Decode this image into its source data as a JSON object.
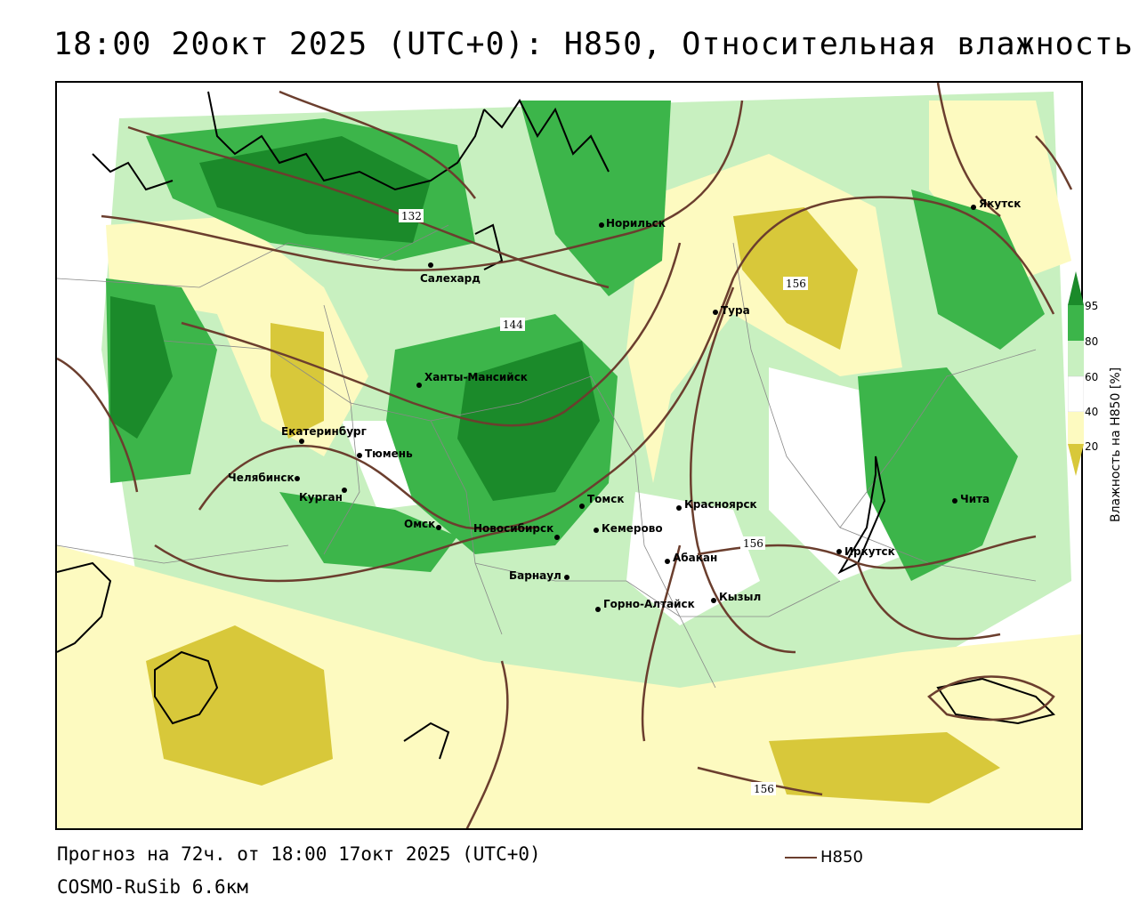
{
  "header": {
    "title": "18:00 20окт 2025 (UTC+0): H850, Относительная влажность"
  },
  "footer": {
    "forecast": "Прогноз на 72ч. от 18:00 17окт 2025 (UTC+0)",
    "model": "COSMO-RuSib 6.6км"
  },
  "legend": {
    "line_label": "H850",
    "line_color": "#6b3e2e"
  },
  "colorbar": {
    "title": "Влажность на H850 [%]",
    "ticks": [
      "95",
      "80",
      "60",
      "40",
      "20"
    ],
    "colors": {
      "c95": "#1b8a2a",
      "c80": "#3cb54a",
      "c60": "#c8f0c0",
      "c40": "#fdfac0",
      "c20": "#d8c83a"
    }
  },
  "contours": {
    "labels": [
      "132",
      "144",
      "156",
      "156",
      "156"
    ]
  },
  "cities": [
    {
      "name": "Норильск"
    },
    {
      "name": "Якутск"
    },
    {
      "name": "Салехард"
    },
    {
      "name": "Тура"
    },
    {
      "name": "Ханты-Мансийск"
    },
    {
      "name": "Екатеринбург"
    },
    {
      "name": "Тюмень"
    },
    {
      "name": "Челябинск"
    },
    {
      "name": "Курган"
    },
    {
      "name": "Омск"
    },
    {
      "name": "Новосибирск"
    },
    {
      "name": "Томск"
    },
    {
      "name": "Кемерово"
    },
    {
      "name": "Красноярск"
    },
    {
      "name": "Барнаул"
    },
    {
      "name": "Абакан"
    },
    {
      "name": "Иркутск"
    },
    {
      "name": "Чита"
    },
    {
      "name": "Кызыл"
    },
    {
      "name": "Горно-Алтайск"
    }
  ]
}
